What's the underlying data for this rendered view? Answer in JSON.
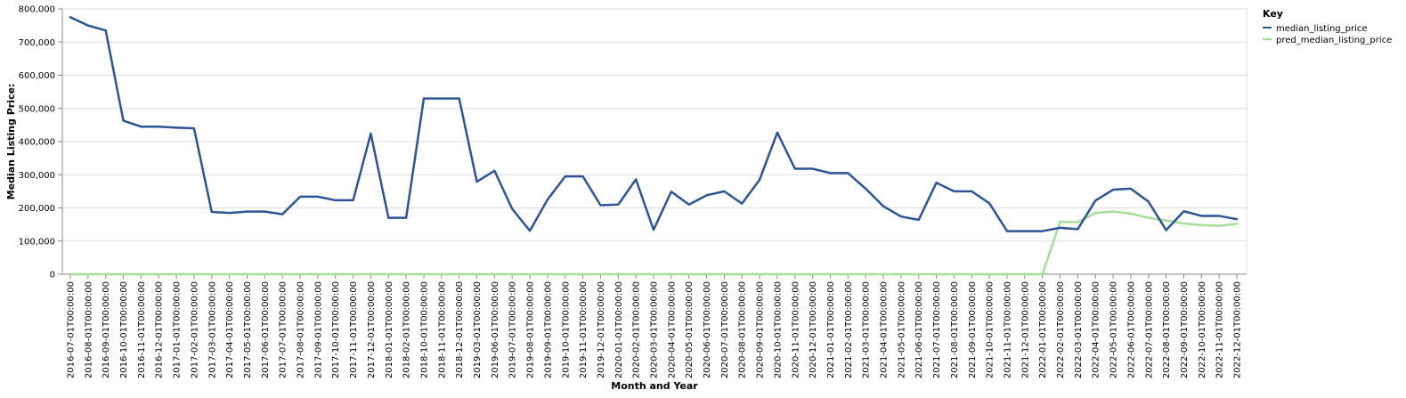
{
  "chart_data": {
    "type": "line",
    "xlabel": "Month and Year",
    "ylabel": "Median Listing Price:",
    "ylim": [
      0,
      800000
    ],
    "y_ticks": [
      "0",
      "100,000",
      "200,000",
      "300,000",
      "400,000",
      "500,000",
      "600,000",
      "700,000",
      "800,000"
    ],
    "y_tick_values": [
      0,
      100000,
      200000,
      300000,
      400000,
      500000,
      600000,
      700000,
      800000
    ],
    "grid": true,
    "legend": {
      "title": "Key",
      "placement": "top-right"
    },
    "categories": [
      "2016-07-01T00:00:00",
      "2016-08-01T00:00:00",
      "2016-09-01T00:00:00",
      "2016-10-01T00:00:00",
      "2016-11-01T00:00:00",
      "2016-12-01T00:00:00",
      "2017-01-01T00:00:00",
      "2017-02-01T00:00:00",
      "2017-03-01T00:00:00",
      "2017-04-01T00:00:00",
      "2017-05-01T00:00:00",
      "2017-06-01T00:00:00",
      "2017-07-01T00:00:00",
      "2017-08-01T00:00:00",
      "2017-09-01T00:00:00",
      "2017-10-01T00:00:00",
      "2017-11-01T00:00:00",
      "2017-12-01T00:00:00",
      "2018-01-01T00:00:00",
      "2018-02-01T00:00:00",
      "2018-10-01T00:00:00",
      "2018-11-01T00:00:00",
      "2018-12-01T00:00:00",
      "2019-03-01T00:00:00",
      "2019-06-01T00:00:00",
      "2019-07-01T00:00:00",
      "2019-08-01T00:00:00",
      "2019-09-01T00:00:00",
      "2019-10-01T00:00:00",
      "2019-11-01T00:00:00",
      "2019-12-01T00:00:00",
      "2020-01-01T00:00:00",
      "2020-02-01T00:00:00",
      "2020-03-01T00:00:00",
      "2020-04-01T00:00:00",
      "2020-05-01T00:00:00",
      "2020-06-01T00:00:00",
      "2020-07-01T00:00:00",
      "2020-08-01T00:00:00",
      "2020-09-01T00:00:00",
      "2020-10-01T00:00:00",
      "2020-11-01T00:00:00",
      "2020-12-01T00:00:00",
      "2021-01-01T00:00:00",
      "2021-02-01T00:00:00",
      "2021-03-01T00:00:00",
      "2021-04-01T00:00:00",
      "2021-05-01T00:00:00",
      "2021-06-01T00:00:00",
      "2021-07-01T00:00:00",
      "2021-08-01T00:00:00",
      "2021-09-01T00:00:00",
      "2021-10-01T00:00:00",
      "2021-11-01T00:00:00",
      "2021-12-01T00:00:00",
      "2022-01-01T00:00:00",
      "2022-02-01T00:00:00",
      "2022-03-01T00:00:00",
      "2022-04-01T00:00:00",
      "2022-05-01T00:00:00",
      "2022-06-01T00:00:00",
      "2022-07-01T00:00:00",
      "2022-08-01T00:00:00",
      "2022-09-01T00:00:00",
      "2022-10-01T00:00:00",
      "2022-11-01T00:00:00",
      "2022-12-01T00:00:00"
    ],
    "series": [
      {
        "name": "median_listing_price",
        "color": "#2c5496",
        "values": [
          775000,
          750000,
          735000,
          463000,
          445000,
          445000,
          442000,
          440000,
          188000,
          185000,
          189000,
          189000,
          181000,
          234000,
          234000,
          223000,
          223000,
          424000,
          170000,
          170000,
          530000,
          530000,
          530000,
          279000,
          312000,
          197000,
          131000,
          225000,
          295000,
          295000,
          208000,
          210000,
          286000,
          134000,
          249000,
          210000,
          238000,
          250000,
          213000,
          285000,
          427000,
          318000,
          318000,
          305000,
          305000,
          258000,
          205000,
          174000,
          164000,
          276000,
          250000,
          250000,
          214000,
          130000,
          130000,
          130000,
          140000,
          136000,
          222000,
          255000,
          258000,
          219000,
          133000,
          190000,
          176000,
          176000,
          166000
        ]
      },
      {
        "name": "pred_median_listing_price",
        "color": "#a7dc9b",
        "values": [
          0,
          0,
          0,
          0,
          0,
          0,
          0,
          0,
          0,
          0,
          0,
          0,
          0,
          0,
          0,
          0,
          0,
          0,
          0,
          0,
          0,
          0,
          0,
          0,
          0,
          0,
          0,
          0,
          0,
          0,
          0,
          0,
          0,
          0,
          0,
          0,
          0,
          0,
          0,
          0,
          0,
          0,
          0,
          0,
          0,
          0,
          0,
          0,
          0,
          0,
          0,
          0,
          0,
          0,
          0,
          0,
          158000,
          157000,
          185000,
          189000,
          183000,
          170000,
          162000,
          153000,
          148000,
          146000,
          152000
        ]
      }
    ]
  }
}
